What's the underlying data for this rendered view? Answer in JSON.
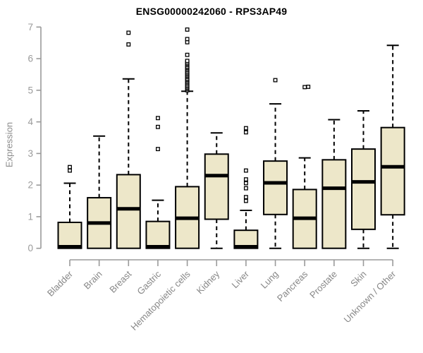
{
  "page": {
    "background": "#ffffff"
  },
  "chart_data": {
    "type": "boxplot",
    "title": "ENSG00000242060 - RPS3AP49",
    "ylabel": "Expression",
    "xlabel": "",
    "ylim": [
      0,
      7
    ],
    "yticks": [
      0,
      1,
      2,
      3,
      4,
      5,
      6,
      7
    ],
    "grid": false,
    "legend": "none",
    "categories": [
      "Bladder",
      "Brain",
      "Breast",
      "Gastric",
      "Hematopoietic cells",
      "Kidney",
      "Liver",
      "Lung",
      "Pancreas",
      "Prostate",
      "Skin",
      "Unknown / Other"
    ],
    "boxes": [
      {
        "category": "Bladder",
        "low": 0,
        "q1": 0,
        "median": 0.05,
        "q3": 0.82,
        "high": 2.06,
        "outliers": [
          2.46,
          2.57
        ]
      },
      {
        "category": "Brain",
        "low": 0,
        "q1": 0,
        "median": 0.8,
        "q3": 1.6,
        "high": 3.55,
        "outliers": []
      },
      {
        "category": "Breast",
        "low": 0,
        "q1": 0,
        "median": 1.25,
        "q3": 2.33,
        "high": 5.36,
        "outliers": [
          6.45,
          6.82
        ]
      },
      {
        "category": "Gastric",
        "low": 0,
        "q1": 0,
        "median": 0.05,
        "q3": 0.85,
        "high": 1.52,
        "outliers": [
          3.14,
          3.84,
          4.12
        ]
      },
      {
        "category": "Hematopoietic cells",
        "low": 0,
        "q1": 0,
        "median": 0.95,
        "q3": 1.95,
        "high": 4.97,
        "outliers": [
          5.0,
          5.04,
          5.08,
          5.12,
          5.16,
          5.21,
          5.25,
          5.29,
          5.33,
          5.37,
          5.42,
          5.46,
          5.5,
          5.54,
          5.58,
          5.63,
          5.67,
          5.71,
          5.75,
          5.8,
          5.84,
          5.88,
          5.93,
          6.12,
          6.52,
          6.62,
          6.92
        ]
      },
      {
        "category": "Kidney",
        "low": 0,
        "q1": 0.92,
        "median": 2.3,
        "q3": 2.98,
        "high": 3.65,
        "outliers": []
      },
      {
        "category": "Liver",
        "low": 0,
        "q1": 0,
        "median": 0.05,
        "q3": 0.57,
        "high": 1.2,
        "outliers": [
          1.5,
          1.62,
          1.9,
          2.06,
          2.18,
          2.46,
          3.67,
          3.8
        ]
      },
      {
        "category": "Lung",
        "low": 0,
        "q1": 1.07,
        "median": 2.07,
        "q3": 2.76,
        "high": 4.57,
        "outliers": [
          5.32
        ]
      },
      {
        "category": "Pancreas",
        "low": 0,
        "q1": 0,
        "median": 0.95,
        "q3": 1.86,
        "high": 2.86,
        "outliers": [
          5.1,
          5.11
        ]
      },
      {
        "category": "Prostate",
        "low": 0,
        "q1": 0,
        "median": 1.9,
        "q3": 2.8,
        "high": 4.07,
        "outliers": []
      },
      {
        "category": "Skin",
        "low": 0,
        "q1": 0.6,
        "median": 2.1,
        "q3": 3.14,
        "high": 4.35,
        "outliers": []
      },
      {
        "category": "Unknown / Other",
        "low": 0,
        "q1": 1.06,
        "median": 2.58,
        "q3": 3.82,
        "high": 6.42,
        "outliers": []
      }
    ],
    "colors": {
      "box_fill": "#EDE7C9",
      "box_stroke": "#000000",
      "median": "#000000",
      "whisker": "#000000",
      "outlier_stroke": "#000000",
      "outlier_fill": "#ffffff",
      "axis_line": "#9a9a9a",
      "y_tick_label": "#9a9a9a",
      "x_tick_label": "#878787",
      "title": "#000000",
      "ylabel": "#8c8c8c"
    }
  }
}
